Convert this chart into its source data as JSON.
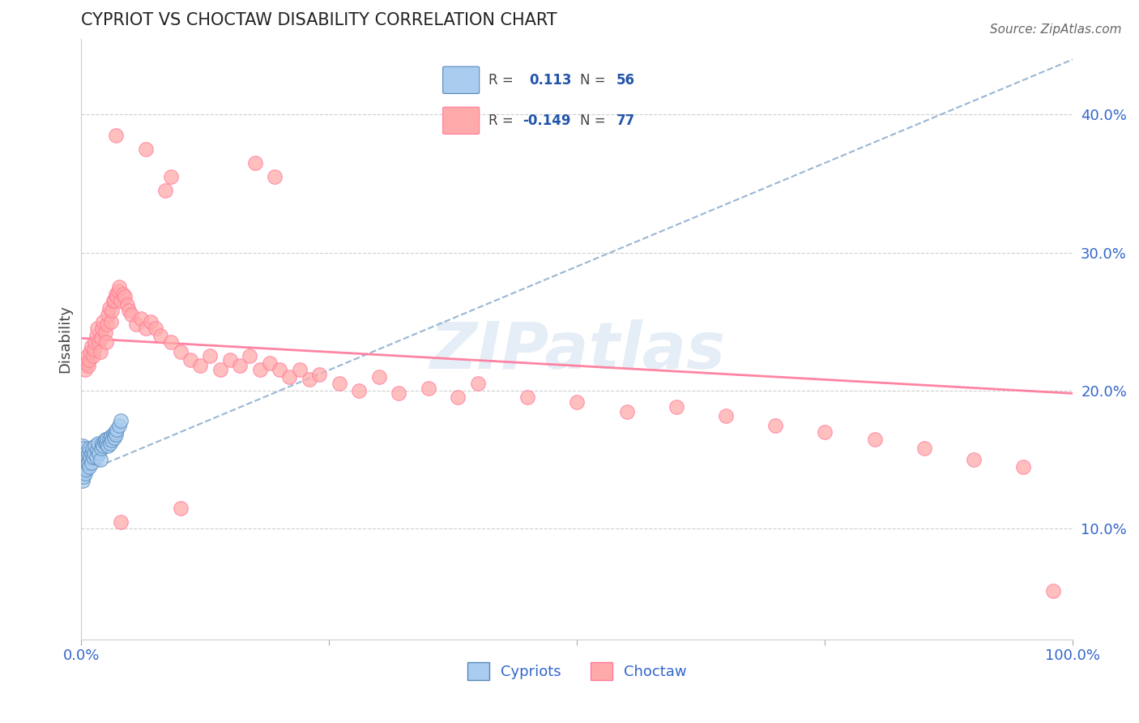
{
  "title": "CYPRIOT VS CHOCTAW DISABILITY CORRELATION CHART",
  "source": "Source: ZipAtlas.com",
  "ylabel": "Disability",
  "yticks": [
    0.1,
    0.2,
    0.3,
    0.4
  ],
  "ytick_labels": [
    "10.0%",
    "20.0%",
    "30.0%",
    "40.0%"
  ],
  "xtick_labels": [
    "0.0%",
    "100.0%"
  ],
  "xlim": [
    0.0,
    1.0
  ],
  "ylim": [
    0.02,
    0.455
  ],
  "legend_blue_r": "0.113",
  "legend_blue_n": "56",
  "legend_pink_r": "-0.149",
  "legend_pink_n": "77",
  "watermark": "ZIPatlas",
  "blue_scatter_color": "#AACCEE",
  "blue_edge_color": "#5588BB",
  "pink_scatter_color": "#FFAAAA",
  "pink_edge_color": "#FF7799",
  "blue_line_color": "#88AACC",
  "pink_line_color": "#FF7799",
  "cypriot_x": [
    0.001,
    0.001,
    0.001,
    0.001,
    0.001,
    0.002,
    0.002,
    0.002,
    0.002,
    0.002,
    0.003,
    0.003,
    0.003,
    0.004,
    0.004,
    0.004,
    0.005,
    0.005,
    0.005,
    0.006,
    0.006,
    0.007,
    0.007,
    0.008,
    0.008,
    0.009,
    0.01,
    0.01,
    0.011,
    0.012,
    0.013,
    0.014,
    0.015,
    0.016,
    0.017,
    0.018,
    0.019,
    0.02,
    0.021,
    0.022,
    0.023,
    0.024,
    0.025,
    0.026,
    0.027,
    0.028,
    0.029,
    0.03,
    0.031,
    0.032,
    0.033,
    0.034,
    0.035,
    0.036,
    0.038,
    0.04
  ],
  "cypriot_y": [
    0.145,
    0.15,
    0.155,
    0.16,
    0.135,
    0.148,
    0.153,
    0.158,
    0.143,
    0.138,
    0.152,
    0.147,
    0.142,
    0.15,
    0.145,
    0.14,
    0.155,
    0.148,
    0.143,
    0.152,
    0.147,
    0.155,
    0.148,
    0.158,
    0.145,
    0.152,
    0.155,
    0.148,
    0.158,
    0.152,
    0.155,
    0.16,
    0.152,
    0.157,
    0.162,
    0.155,
    0.15,
    0.158,
    0.162,
    0.16,
    0.163,
    0.165,
    0.162,
    0.165,
    0.16,
    0.165,
    0.162,
    0.167,
    0.164,
    0.168,
    0.166,
    0.17,
    0.168,
    0.172,
    0.175,
    0.178
  ],
  "choctaw_x": [
    0.004,
    0.005,
    0.006,
    0.007,
    0.008,
    0.009,
    0.01,
    0.012,
    0.013,
    0.014,
    0.015,
    0.016,
    0.018,
    0.019,
    0.02,
    0.021,
    0.022,
    0.024,
    0.025,
    0.026,
    0.027,
    0.028,
    0.03,
    0.031,
    0.032,
    0.033,
    0.035,
    0.036,
    0.037,
    0.038,
    0.04,
    0.042,
    0.044,
    0.046,
    0.048,
    0.05,
    0.055,
    0.06,
    0.065,
    0.07,
    0.075,
    0.08,
    0.09,
    0.1,
    0.11,
    0.12,
    0.13,
    0.14,
    0.15,
    0.16,
    0.17,
    0.18,
    0.19,
    0.2,
    0.21,
    0.22,
    0.23,
    0.24,
    0.26,
    0.28,
    0.3,
    0.32,
    0.35,
    0.38,
    0.4,
    0.45,
    0.5,
    0.55,
    0.6,
    0.65,
    0.7,
    0.75,
    0.8,
    0.85,
    0.9,
    0.95,
    0.98
  ],
  "choctaw_y": [
    0.215,
    0.22,
    0.225,
    0.218,
    0.222,
    0.228,
    0.232,
    0.225,
    0.23,
    0.235,
    0.24,
    0.245,
    0.235,
    0.228,
    0.238,
    0.245,
    0.25,
    0.242,
    0.235,
    0.248,
    0.255,
    0.26,
    0.25,
    0.258,
    0.265,
    0.265,
    0.27,
    0.268,
    0.272,
    0.275,
    0.265,
    0.27,
    0.268,
    0.262,
    0.258,
    0.255,
    0.248,
    0.252,
    0.245,
    0.25,
    0.245,
    0.24,
    0.235,
    0.228,
    0.222,
    0.218,
    0.225,
    0.215,
    0.222,
    0.218,
    0.225,
    0.215,
    0.22,
    0.215,
    0.21,
    0.215,
    0.208,
    0.212,
    0.205,
    0.2,
    0.21,
    0.198,
    0.202,
    0.195,
    0.205,
    0.195,
    0.192,
    0.185,
    0.188,
    0.182,
    0.175,
    0.17,
    0.165,
    0.158,
    0.15,
    0.145,
    0.055
  ],
  "choctaw_outlier_high_x": [
    0.175,
    0.195,
    0.065,
    0.035,
    0.085,
    0.09,
    0.1,
    0.04
  ],
  "choctaw_outlier_high_y": [
    0.365,
    0.355,
    0.375,
    0.385,
    0.345,
    0.355,
    0.115,
    0.105
  ],
  "cyp_trend_x0": 0.0,
  "cyp_trend_x1": 1.0,
  "cyp_trend_y0": 0.14,
  "cyp_trend_y1": 0.44,
  "cho_trend_x0": 0.0,
  "cho_trend_x1": 1.0,
  "cho_trend_y0": 0.238,
  "cho_trend_y1": 0.198
}
